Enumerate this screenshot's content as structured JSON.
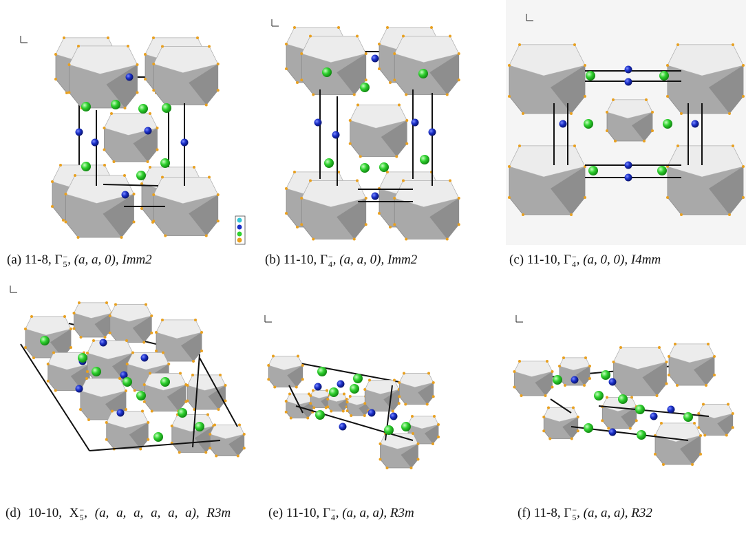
{
  "figure": {
    "panels": [
      {
        "label": "(a)",
        "text": "11-8,",
        "irrep": "Γ",
        "irrep_index": "5",
        "irrep_sign": "−",
        "order_parameter": "(a, a, 0),",
        "space_group": "Imm2"
      },
      {
        "label": "(b)",
        "text": "11-10,",
        "irrep": "Γ",
        "irrep_index": "4",
        "irrep_sign": "−",
        "order_parameter": "(a, a, 0),",
        "space_group": "Imm2"
      },
      {
        "label": "(c)",
        "text": "11-10,",
        "irrep": "Γ",
        "irrep_index": "4",
        "irrep_sign": "−",
        "order_parameter": "(a, 0, 0),",
        "space_group": "I4mm"
      },
      {
        "label": "(d)",
        "text": "10-10,",
        "irrep": "X",
        "irrep_index": "5",
        "irrep_sign": "−",
        "order_parameter": "(a, a, a, a, a, a),",
        "space_group": "R3m"
      },
      {
        "label": "(e)",
        "text": "11-10,",
        "irrep": "Γ",
        "irrep_index": "4",
        "irrep_sign": "−",
        "order_parameter": "(a, a, a),",
        "space_group": "R3m"
      },
      {
        "label": "(f)",
        "text": "11-8,",
        "irrep": "Γ",
        "irrep_index": "5",
        "irrep_sign": "−",
        "order_parameter": "(a, a, a),",
        "space_group": "R32"
      }
    ]
  }
}
